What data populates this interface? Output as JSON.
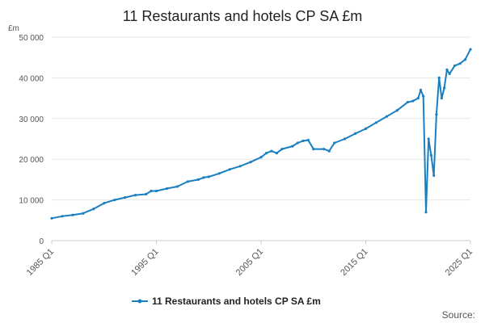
{
  "chart_data": {
    "type": "line",
    "title": "11 Restaurants and hotels CP SA £m",
    "ylabel": "£m",
    "ylim": [
      0,
      50000
    ],
    "y_ticks": [
      0,
      10000,
      20000,
      30000,
      40000,
      50000
    ],
    "y_tick_labels": [
      "0",
      "10 000",
      "20 000",
      "30 000",
      "40 000",
      "50 000"
    ],
    "x_tick_labels": [
      "1985 Q1",
      "1995 Q1",
      "2005 Q1",
      "2015 Q1",
      "2025 Q1"
    ],
    "x_tick_values": [
      1985,
      1995,
      2005,
      2015,
      2025
    ],
    "xlim": [
      1985,
      2025
    ],
    "grid": true,
    "legend_position": "bottom",
    "color": "#1a7fc1",
    "source_label": "Source:",
    "series": [
      {
        "name": "11 Restaurants and hotels CP SA £m",
        "points": [
          [
            1985.0,
            5500
          ],
          [
            1986.0,
            6000
          ],
          [
            1987.0,
            6300
          ],
          [
            1988.0,
            6700
          ],
          [
            1989.0,
            7800
          ],
          [
            1990.0,
            9200
          ],
          [
            1991.0,
            10000
          ],
          [
            1992.0,
            10600
          ],
          [
            1993.0,
            11200
          ],
          [
            1994.0,
            11400
          ],
          [
            1994.5,
            12200
          ],
          [
            1995.0,
            12200
          ],
          [
            1996.0,
            12800
          ],
          [
            1997.0,
            13300
          ],
          [
            1998.0,
            14500
          ],
          [
            1999.0,
            15000
          ],
          [
            1999.5,
            15500
          ],
          [
            2000.0,
            15700
          ],
          [
            2001.0,
            16500
          ],
          [
            2002.0,
            17500
          ],
          [
            2003.0,
            18300
          ],
          [
            2004.0,
            19300
          ],
          [
            2005.0,
            20500
          ],
          [
            2005.5,
            21500
          ],
          [
            2006.0,
            22000
          ],
          [
            2006.5,
            21500
          ],
          [
            2007.0,
            22500
          ],
          [
            2008.0,
            23200
          ],
          [
            2008.5,
            24000
          ],
          [
            2009.0,
            24500
          ],
          [
            2009.5,
            24700
          ],
          [
            2010.0,
            22500
          ],
          [
            2011.0,
            22500
          ],
          [
            2011.5,
            22000
          ],
          [
            2012.0,
            24000
          ],
          [
            2013.0,
            25000
          ],
          [
            2014.0,
            26300
          ],
          [
            2015.0,
            27500
          ],
          [
            2016.0,
            29000
          ],
          [
            2017.0,
            30500
          ],
          [
            2018.0,
            32000
          ],
          [
            2019.0,
            34000
          ],
          [
            2019.5,
            34300
          ],
          [
            2020.0,
            35000
          ],
          [
            2020.25,
            37000
          ],
          [
            2020.5,
            35500
          ],
          [
            2020.75,
            7000
          ],
          [
            2021.0,
            25000
          ],
          [
            2021.25,
            21000
          ],
          [
            2021.5,
            16000
          ],
          [
            2021.75,
            31000
          ],
          [
            2022.0,
            40000
          ],
          [
            2022.25,
            35000
          ],
          [
            2022.5,
            37500
          ],
          [
            2022.75,
            42000
          ],
          [
            2023.0,
            41000
          ],
          [
            2023.5,
            43000
          ],
          [
            2024.0,
            43500
          ],
          [
            2024.5,
            44500
          ],
          [
            2025.0,
            47000
          ]
        ]
      }
    ]
  }
}
